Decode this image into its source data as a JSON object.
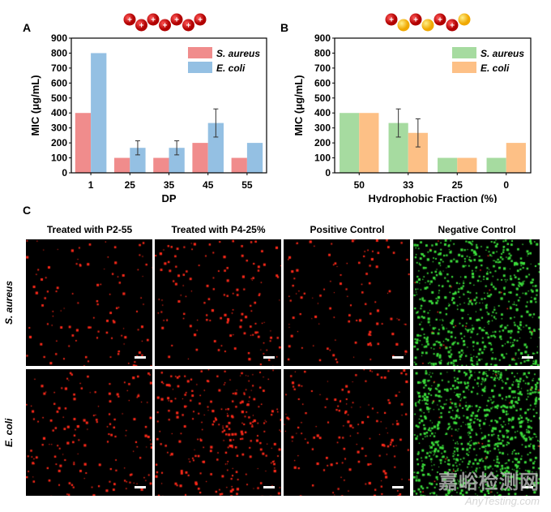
{
  "panels": {
    "a": "A",
    "b": "B",
    "c": "C"
  },
  "chart_data": [
    {
      "type": "bar",
      "id": "A",
      "categories": [
        "1",
        "25",
        "35",
        "45",
        "55"
      ],
      "series": [
        {
          "name": "S. aureus",
          "color": "#F08C8C",
          "values": [
            400,
            100,
            100,
            200,
            100
          ],
          "errors": [
            0,
            0,
            0,
            0,
            0
          ]
        },
        {
          "name": "E. coli",
          "color": "#94C0E3",
          "values": [
            800,
            167,
            167,
            333,
            200
          ],
          "errors": [
            0,
            47,
            47,
            94,
            0
          ]
        }
      ],
      "xlabel": "DP",
      "ylabel": "MIC (μg/mL)",
      "ylim": [
        0,
        900
      ],
      "yticks": [
        0,
        100,
        200,
        300,
        400,
        500,
        600,
        700,
        800,
        900
      ],
      "legend": "top-right",
      "grid": false,
      "molecule_icon": [
        "cation",
        "cation",
        "cation",
        "cation",
        "cation",
        "cation",
        "cation"
      ]
    },
    {
      "type": "bar",
      "id": "B",
      "categories": [
        "50",
        "33",
        "25",
        "0"
      ],
      "series": [
        {
          "name": "S. aureus",
          "color": "#A6DBA0",
          "values": [
            400,
            333,
            100,
            100
          ],
          "errors": [
            0,
            94,
            0,
            0
          ]
        },
        {
          "name": "E. coli",
          "color": "#FDC086",
          "values": [
            400,
            267,
            100,
            200
          ],
          "errors": [
            0,
            94,
            0,
            0
          ]
        }
      ],
      "xlabel": "Hydrophobic Fraction (%)",
      "ylabel": "MIC (μg/mL)",
      "ylim": [
        0,
        900
      ],
      "yticks": [
        0,
        100,
        200,
        300,
        400,
        500,
        600,
        700,
        800,
        900
      ],
      "legend": "top-right",
      "grid": false,
      "molecule_icon": [
        "cation",
        "hydrophobic",
        "cation",
        "hydrophobic",
        "cation",
        "cation",
        "hydrophobic"
      ]
    }
  ],
  "microscopy": {
    "columns": [
      "Treated with P2-55",
      "Treated with P4-25%",
      "Positive Control",
      "Negative Control"
    ],
    "rows": [
      "S. aureus",
      "E. coli"
    ],
    "dead_color": "#FF2A1A",
    "live_color": "#3CE03C"
  },
  "watermark": {
    "cn": "嘉峪检测网",
    "en": "AnyTesting.com"
  }
}
